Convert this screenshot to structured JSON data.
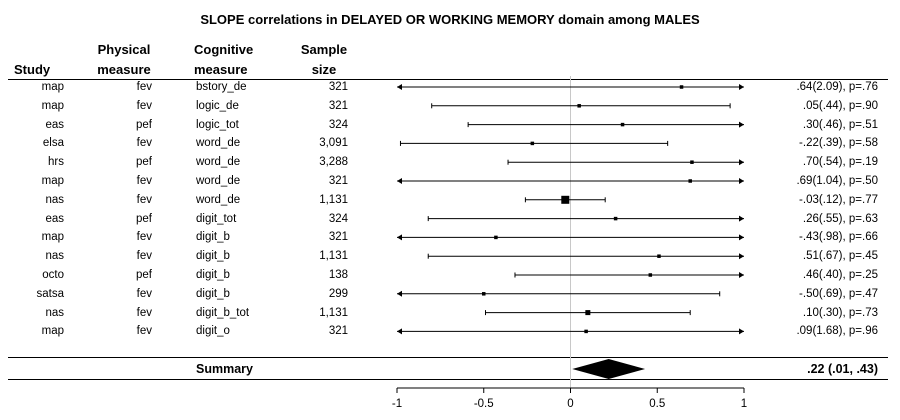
{
  "chart_data": {
    "type": "forest",
    "title": "SLOPE correlations in DELAYED OR WORKING MEMORY domain among MALES",
    "columns": {
      "study": "Study",
      "physical_line1": "Physical",
      "physical_line2": "measure",
      "cognitive_line1": "Cognitive",
      "cognitive_line2": "measure",
      "size_line1": "Sample",
      "size_line2": "size"
    },
    "xlim": [
      -1,
      1
    ],
    "ticks": [
      -1,
      -0.5,
      0,
      0.5,
      1
    ],
    "tick_labels": [
      "-1",
      "-0.5",
      "0",
      "0.5",
      "1"
    ],
    "rows": [
      {
        "study": "map",
        "physical": "fev",
        "cognitive": "bstory_de",
        "n": "321",
        "est": 0.64,
        "lo": -1,
        "hi": 1,
        "lo_arrow": true,
        "hi_arrow": true,
        "label": ".64(2.09), p=.76"
      },
      {
        "study": "map",
        "physical": "fev",
        "cognitive": "logic_de",
        "n": "321",
        "est": 0.05,
        "lo": -0.8,
        "hi": 0.92,
        "lo_arrow": false,
        "hi_arrow": false,
        "label": ".05(.44), p=.90"
      },
      {
        "study": "eas",
        "physical": "pef",
        "cognitive": "logic_tot",
        "n": "324",
        "est": 0.3,
        "lo": -0.59,
        "hi": 1,
        "lo_arrow": false,
        "hi_arrow": true,
        "label": ".30(.46), p=.51"
      },
      {
        "study": "elsa",
        "physical": "fev",
        "cognitive": "word_de",
        "n": "3,091",
        "est": -0.22,
        "lo": -0.98,
        "hi": 0.56,
        "lo_arrow": false,
        "hi_arrow": false,
        "label": "-.22(.39), p=.58"
      },
      {
        "study": "hrs",
        "physical": "pef",
        "cognitive": "word_de",
        "n": "3,288",
        "est": 0.7,
        "lo": -0.36,
        "hi": 1,
        "lo_arrow": false,
        "hi_arrow": true,
        "label": ".70(.54), p=.19"
      },
      {
        "study": "map",
        "physical": "fev",
        "cognitive": "word_de",
        "n": "321",
        "est": 0.69,
        "lo": -1,
        "hi": 1,
        "lo_arrow": true,
        "hi_arrow": true,
        "label": ".69(1.04), p=.50"
      },
      {
        "study": "nas",
        "physical": "fev",
        "cognitive": "word_de",
        "n": "1,131",
        "est": -0.03,
        "lo": -0.26,
        "hi": 0.2,
        "lo_arrow": false,
        "hi_arrow": false,
        "weight": 3,
        "label": "-.03(.12), p=.77"
      },
      {
        "study": "eas",
        "physical": "pef",
        "cognitive": "digit_tot",
        "n": "324",
        "est": 0.26,
        "lo": -0.82,
        "hi": 1,
        "lo_arrow": false,
        "hi_arrow": true,
        "label": ".26(.55), p=.63"
      },
      {
        "study": "map",
        "physical": "fev",
        "cognitive": "digit_b",
        "n": "321",
        "est": -0.43,
        "lo": -1,
        "hi": 1,
        "lo_arrow": true,
        "hi_arrow": true,
        "label": "-.43(.98), p=.66"
      },
      {
        "study": "nas",
        "physical": "fev",
        "cognitive": "digit_b",
        "n": "1,131",
        "est": 0.51,
        "lo": -0.82,
        "hi": 1,
        "lo_arrow": false,
        "hi_arrow": true,
        "label": ".51(.67), p=.45"
      },
      {
        "study": "octo",
        "physical": "pef",
        "cognitive": "digit_b",
        "n": "138",
        "est": 0.46,
        "lo": -0.32,
        "hi": 1,
        "lo_arrow": false,
        "hi_arrow": true,
        "label": ".46(.40), p=.25"
      },
      {
        "study": "satsa",
        "physical": "fev",
        "cognitive": "digit_b",
        "n": "299",
        "est": -0.5,
        "lo": -1,
        "hi": 0.86,
        "lo_arrow": true,
        "hi_arrow": false,
        "label": "-.50(.69), p=.47"
      },
      {
        "study": "nas",
        "physical": "fev",
        "cognitive": "digit_b_tot",
        "n": "1,131",
        "est": 0.1,
        "lo": -0.49,
        "hi": 0.69,
        "lo_arrow": false,
        "hi_arrow": false,
        "weight": 2,
        "label": ".10(.30), p=.73"
      },
      {
        "study": "map",
        "physical": "fev",
        "cognitive": "digit_o",
        "n": "321",
        "est": 0.09,
        "lo": -1,
        "hi": 1,
        "lo_arrow": true,
        "hi_arrow": true,
        "label": ".09(1.68), p=.96"
      }
    ],
    "summary": {
      "label": "Summary",
      "est": 0.22,
      "lo": 0.01,
      "hi": 0.43,
      "text": ".22 (.01, .43)"
    },
    "grid": false
  }
}
